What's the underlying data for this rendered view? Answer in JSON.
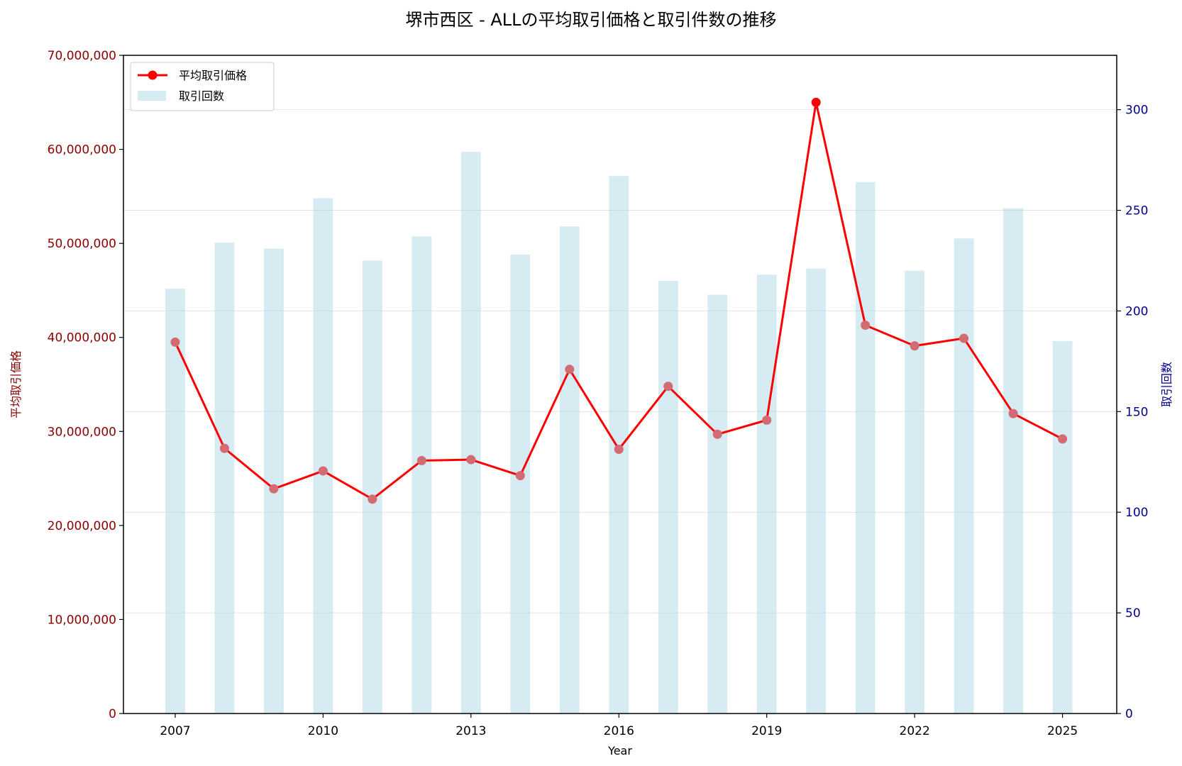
{
  "chart_data": {
    "type": "line+bar",
    "title": "堺市西区 - ALLの平均取引価格と取引件数の推移",
    "xlabel": "Year",
    "ylabel_left": "平均取引価格",
    "ylabel_right": "取引回数",
    "x": [
      2007,
      2008,
      2009,
      2010,
      2011,
      2012,
      2013,
      2014,
      2015,
      2016,
      2017,
      2018,
      2019,
      2020,
      2021,
      2022,
      2023,
      2024,
      2025
    ],
    "x_ticks": [
      "2007",
      "2010",
      "2013",
      "2016",
      "2019",
      "2022",
      "2025"
    ],
    "xlim": [
      2005.95,
      2026.1
    ],
    "ylim_left": [
      0,
      70000000
    ],
    "ylim_right": [
      0,
      327
    ],
    "left_ticks": [
      "0",
      "10,000,000",
      "20,000,000",
      "30,000,000",
      "40,000,000",
      "50,000,000",
      "60,000,000",
      "70,000,000"
    ],
    "right_ticks": [
      "0",
      "50",
      "100",
      "150",
      "200",
      "250",
      "300"
    ],
    "series": [
      {
        "name": "平均取引価格",
        "kind": "line",
        "axis": "left",
        "color": "#ff0000",
        "marker_color": "#d46a72",
        "highlight_color": "#ff0000",
        "highlight_x": 2020,
        "values": [
          39500000,
          28200000,
          23900000,
          25800000,
          22800000,
          26900000,
          27000000,
          25300000,
          36600000,
          28100000,
          34800000,
          29700000,
          31200000,
          65000000,
          41300000,
          39100000,
          39900000,
          31900000,
          29200000
        ]
      },
      {
        "name": "取引回数",
        "kind": "bar",
        "axis": "right",
        "color": "#add8e6",
        "opacity": 0.5,
        "values": [
          211,
          234,
          231,
          256,
          225,
          237,
          279,
          228,
          242,
          267,
          215,
          208,
          218,
          221,
          264,
          220,
          236,
          251,
          185
        ]
      }
    ],
    "grid": true,
    "legend": "top-left"
  }
}
